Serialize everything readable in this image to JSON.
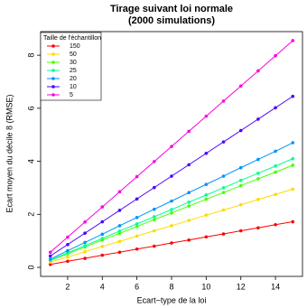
{
  "chart_data": {
    "type": "line",
    "title": "Tirage suivant loi normale",
    "subtitle": "(2000 simulations)",
    "xlabel": "Ecart−type de la loi",
    "ylabel": "Ecart moyen du décile 8 (RMSE)",
    "legend_title": "Taille de l'échantillon",
    "legend_position": "top-left",
    "x": [
      1,
      2,
      3,
      4,
      5,
      6,
      7,
      8,
      9,
      10,
      11,
      12,
      13,
      14,
      15
    ],
    "xlim": [
      0.44,
      15.56
    ],
    "xticks": [
      2,
      4,
      6,
      8,
      10,
      12,
      14
    ],
    "ylim": [
      -0.34,
      8.89
    ],
    "yticks": [
      0,
      2,
      4,
      6,
      8
    ],
    "series": [
      {
        "name": "150",
        "color": "#FF0000",
        "values": [
          0.11,
          0.23,
          0.34,
          0.46,
          0.57,
          0.69,
          0.8,
          0.92,
          1.03,
          1.15,
          1.26,
          1.38,
          1.49,
          1.61,
          1.72
        ]
      },
      {
        "name": "50",
        "color": "#FFDB00",
        "values": [
          0.2,
          0.39,
          0.59,
          0.79,
          0.98,
          1.18,
          1.38,
          1.57,
          1.77,
          1.97,
          2.16,
          2.36,
          2.56,
          2.75,
          2.95
        ]
      },
      {
        "name": "30",
        "color": "#49FF00",
        "values": [
          0.26,
          0.51,
          0.77,
          1.03,
          1.28,
          1.54,
          1.8,
          2.05,
          2.31,
          2.57,
          2.82,
          3.08,
          3.34,
          3.59,
          3.85
        ]
      },
      {
        "name": "25",
        "color": "#00FF92",
        "values": [
          0.27,
          0.55,
          0.82,
          1.09,
          1.37,
          1.64,
          1.91,
          2.18,
          2.46,
          2.73,
          3.0,
          3.28,
          3.55,
          3.82,
          4.1
        ]
      },
      {
        "name": "20",
        "color": "#0092FF",
        "values": [
          0.31,
          0.63,
          0.94,
          1.25,
          1.57,
          1.88,
          2.19,
          2.5,
          2.82,
          3.13,
          3.44,
          3.76,
          4.07,
          4.38,
          4.7
        ]
      },
      {
        "name": "10",
        "color": "#4900FF",
        "values": [
          0.43,
          0.86,
          1.29,
          1.72,
          2.15,
          2.58,
          3.01,
          3.44,
          3.87,
          4.3,
          4.73,
          5.16,
          5.59,
          6.02,
          6.45
        ]
      },
      {
        "name": "5",
        "color": "#FF00DB",
        "values": [
          0.57,
          1.14,
          1.71,
          2.28,
          2.85,
          3.42,
          3.99,
          4.56,
          5.13,
          5.7,
          6.27,
          6.84,
          7.41,
          7.98,
          8.55
        ]
      }
    ]
  }
}
